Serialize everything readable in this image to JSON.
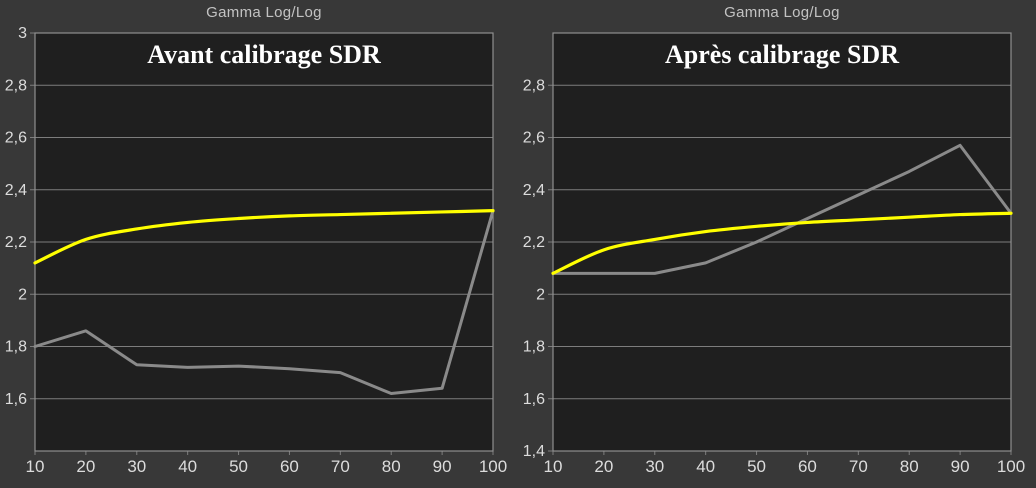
{
  "colors": {
    "background": "#383838",
    "plot_background": "#1f1f1f",
    "grid": "#7d7d7d",
    "border": "#909090",
    "tick_label": "#dcdcdc",
    "chart_title": "#c3c3c3",
    "inner_title": "#ffffff",
    "reference_yellow": "#ffff00",
    "measured_gray": "#8a8a8a"
  },
  "chart_data": [
    {
      "type": "line",
      "title": "Gamma Log/Log",
      "inner_title": "Avant calibrage SDR",
      "xlabel": "",
      "ylabel": "",
      "xlim": [
        10,
        100
      ],
      "ylim": [
        1.4,
        3.0
      ],
      "grid": "horizontal",
      "legend": "none",
      "x": [
        10,
        20,
        30,
        40,
        50,
        60,
        70,
        80,
        90,
        100
      ],
      "x_tick_labels": [
        "10",
        "20",
        "30",
        "40",
        "50",
        "60",
        "70",
        "80",
        "90",
        "100"
      ],
      "y_ticks": [
        3.0,
        2.8,
        2.6,
        2.4,
        2.2,
        2.0,
        1.8,
        1.6
      ],
      "y_tick_labels": [
        "3",
        "2,8",
        "2,6",
        "2,4",
        "2,2",
        "2",
        "1,8",
        "1,6"
      ],
      "series": [
        {
          "name": "measured-gamma",
          "color": "#8a8a8a",
          "smooth": false,
          "width": 3,
          "values": [
            1.8,
            1.86,
            1.73,
            1.72,
            1.725,
            1.715,
            1.7,
            1.62,
            1.64,
            2.32
          ]
        },
        {
          "name": "reference-gamma",
          "color": "#ffff00",
          "smooth": true,
          "width": 3.2,
          "values": [
            2.12,
            2.21,
            2.25,
            2.275,
            2.29,
            2.3,
            2.305,
            2.31,
            2.315,
            2.32
          ]
        }
      ]
    },
    {
      "type": "line",
      "title": "Gamma Log/Log",
      "inner_title": "Après calibrage SDR",
      "xlabel": "",
      "ylabel": "",
      "xlim": [
        10,
        100
      ],
      "ylim": [
        1.4,
        3.0
      ],
      "grid": "horizontal",
      "legend": "none",
      "x": [
        10,
        20,
        30,
        40,
        50,
        60,
        70,
        80,
        90,
        100
      ],
      "x_tick_labels": [
        "10",
        "20",
        "30",
        "40",
        "50",
        "60",
        "70",
        "80",
        "90",
        "100"
      ],
      "y_ticks": [
        2.8,
        2.6,
        2.4,
        2.2,
        2.0,
        1.8,
        1.6,
        1.4
      ],
      "y_tick_labels": [
        "2,8",
        "2,6",
        "2,4",
        "2,2",
        "2",
        "1,8",
        "1,6",
        "1,4"
      ],
      "series": [
        {
          "name": "measured-gamma",
          "color": "#8a8a8a",
          "smooth": false,
          "width": 3,
          "values": [
            2.08,
            2.08,
            2.08,
            2.12,
            2.2,
            2.29,
            2.38,
            2.47,
            2.57,
            2.31
          ]
        },
        {
          "name": "reference-gamma",
          "color": "#ffff00",
          "smooth": true,
          "width": 3.2,
          "values": [
            2.08,
            2.17,
            2.21,
            2.24,
            2.26,
            2.275,
            2.285,
            2.295,
            2.305,
            2.31
          ]
        }
      ]
    }
  ]
}
